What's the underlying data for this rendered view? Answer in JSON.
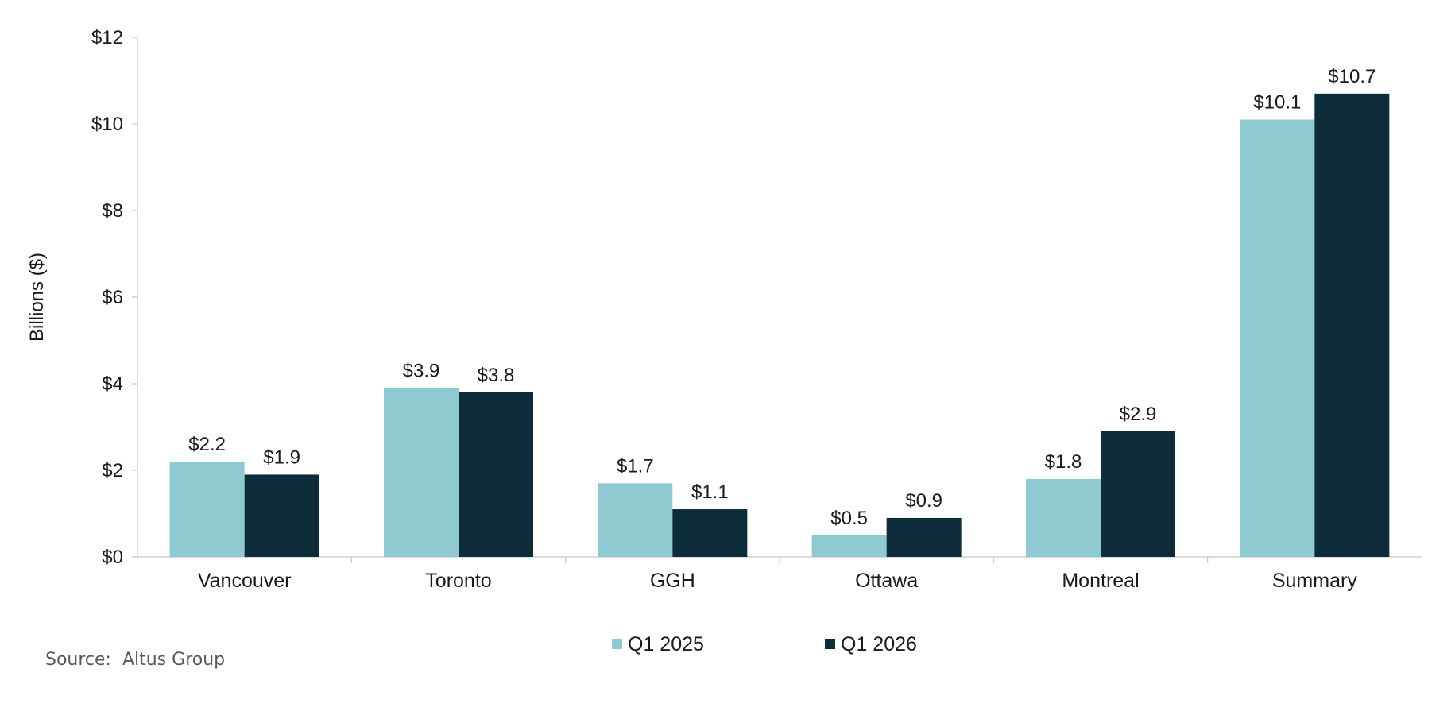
{
  "colors": {
    "series1": "#8fc9d1",
    "series2": "#0b2c38",
    "axis": "#c8c8c8",
    "text": "#1a1a1a"
  },
  "chart_data": {
    "type": "bar",
    "categories": [
      "Vancouver",
      "Toronto",
      "GGH",
      "Ottawa",
      "Montreal",
      "Summary"
    ],
    "series": [
      {
        "name": "Q1 2025",
        "values": [
          2.2,
          3.9,
          1.7,
          0.5,
          1.8,
          10.1
        ],
        "labels": [
          "$2.2",
          "$3.9",
          "$1.7",
          "$0.5",
          "$1.8",
          "$10.1"
        ]
      },
      {
        "name": "Q1 2026",
        "values": [
          1.9,
          3.8,
          1.1,
          0.9,
          2.9,
          10.7
        ],
        "labels": [
          "$1.9",
          "$3.8",
          "$1.1",
          "$0.9",
          "$2.9",
          "$10.7"
        ]
      }
    ],
    "ylabel": "Billions ($)",
    "ylim": [
      0,
      12
    ],
    "yticks": [
      0,
      2,
      4,
      6,
      8,
      10,
      12
    ],
    "ytick_labels": [
      "$0",
      "$2",
      "$4",
      "$6",
      "$8",
      "$10",
      "$12"
    ],
    "grid": false,
    "legend": "bottom"
  },
  "source": "Source:  Altus Group"
}
